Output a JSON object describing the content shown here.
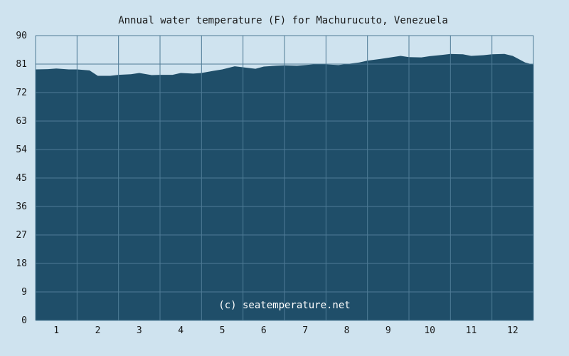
{
  "chart_data": {
    "type": "area",
    "title": "Annual water temperature (F) for Machurucuto, Venezuela",
    "watermark": "(c) seatemperature.net",
    "xlabel": "",
    "ylabel": "",
    "ylim": [
      0,
      90
    ],
    "yticks": [
      0,
      9,
      18,
      27,
      36,
      45,
      54,
      63,
      72,
      81,
      90
    ],
    "xticks": [
      "1",
      "2",
      "3",
      "4",
      "5",
      "6",
      "7",
      "8",
      "9",
      "10",
      "11",
      "12"
    ],
    "grid": true,
    "colors": {
      "background": "#cfe3ef",
      "plot_fill": "#1f4e69",
      "grid": "#4f7b96"
    },
    "series": [
      {
        "x_units": "month",
        "x": [
          0.0,
          0.3,
          0.5,
          0.8,
          1.0,
          1.3,
          1.5,
          1.8,
          2.0,
          2.3,
          2.5,
          2.8,
          3.0,
          3.3,
          3.5,
          3.8,
          4.0,
          4.3,
          4.5,
          4.8,
          5.0,
          5.3,
          5.5,
          5.8,
          6.0,
          6.3,
          6.5,
          6.8,
          7.0,
          7.3,
          7.5,
          7.8,
          8.0,
          8.3,
          8.5,
          8.8,
          9.0,
          9.3,
          9.5,
          9.8,
          10.0,
          10.3,
          10.5,
          10.8,
          11.0,
          11.3,
          11.5,
          11.8,
          12.0
        ],
        "values": [
          79.3,
          79.4,
          79.6,
          79.3,
          79.3,
          79.0,
          77.3,
          77.3,
          77.6,
          77.8,
          78.2,
          77.5,
          77.6,
          77.6,
          78.2,
          78.0,
          78.2,
          78.9,
          79.3,
          80.3,
          80.0,
          79.5,
          80.2,
          80.5,
          80.6,
          80.5,
          80.7,
          81.0,
          80.9,
          80.7,
          81.0,
          81.5,
          82.1,
          82.6,
          83.0,
          83.6,
          83.2,
          83.1,
          83.5,
          83.9,
          84.2,
          84.1,
          83.6,
          83.8,
          84.1,
          84.2,
          83.6,
          81.5,
          80.8
        ]
      }
    ]
  }
}
